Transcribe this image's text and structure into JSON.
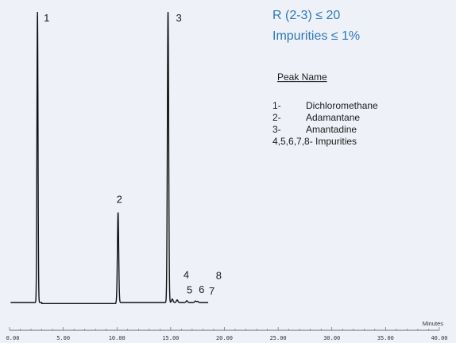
{
  "chart_data": {
    "type": "line",
    "xlabel": "Minutes",
    "xlim": [
      0,
      40
    ],
    "ylim": [
      0,
      100
    ],
    "x_tick_labels": [
      "0.00",
      "5.00",
      "10.00",
      "15.00",
      "20.00",
      "25.00",
      "30.00",
      "35.00",
      "40.00"
    ],
    "x_ticks": [
      0,
      5,
      10,
      15,
      20,
      25,
      30,
      35,
      40
    ],
    "series": [
      {
        "peaks": [
          {
            "label": "1",
            "rt": 2.6,
            "height": 100
          },
          {
            "label": "2",
            "rt": 10.1,
            "height": 31
          },
          {
            "label": "3",
            "rt": 14.75,
            "height": 100
          },
          {
            "label": "4",
            "rt": 15.15,
            "height": 1.2
          },
          {
            "label": "5",
            "rt": 15.6,
            "height": 0.9
          },
          {
            "label": "6",
            "rt": 16.5,
            "height": 0.6
          },
          {
            "label": "7",
            "rt": 17.3,
            "height": 0.5
          },
          {
            "label": "8",
            "rt": 17.5,
            "height": 0.4
          }
        ]
      }
    ],
    "annotations": {
      "spec_lines": [
        "R (2-3) ≤ 20",
        "Impurities ≤ 1%"
      ],
      "legend_title": "Peak Name",
      "legend_items": [
        {
          "num": "1-",
          "name": "Dichloromethane"
        },
        {
          "num": "2-",
          "name": "Adamantane"
        },
        {
          "num": "3-",
          "name": "Amantadine"
        },
        {
          "num": "4,5,6,7,8-",
          "name": "Impurities"
        }
      ]
    },
    "grid": false,
    "colors": {
      "background": "#eef2f8",
      "trace": "#111111",
      "spec_text": "#2f77b8"
    }
  }
}
